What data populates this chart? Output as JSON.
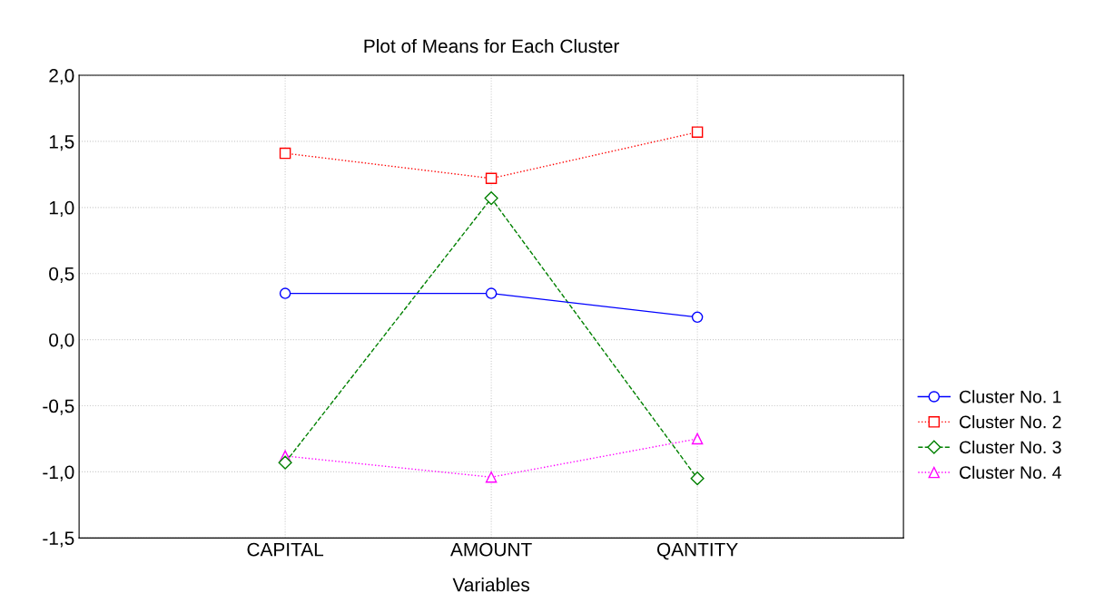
{
  "chart_data": {
    "type": "line",
    "title": "Plot of Means for Each Cluster",
    "xlabel": "Variables",
    "categories": [
      "CAPITAL",
      "AMOUNT",
      "QANTITY"
    ],
    "series": [
      {
        "name": "Cluster No. 1",
        "color": "#0000ff",
        "values": [
          0.35,
          0.35,
          0.17
        ],
        "marker": "circle",
        "line_style": "solid"
      },
      {
        "name": "Cluster No. 2",
        "color": "#ff0000",
        "values": [
          1.41,
          1.22,
          1.57
        ],
        "marker": "square",
        "line_style": "dotted"
      },
      {
        "name": "Cluster No. 3",
        "color": "#008000",
        "values": [
          -0.93,
          1.07,
          -1.05
        ],
        "marker": "diamond",
        "line_style": "dashed"
      },
      {
        "name": "Cluster No. 4",
        "color": "#ff00ff",
        "values": [
          -0.88,
          -1.04,
          -0.75
        ],
        "marker": "triangle",
        "line_style": "dotted"
      }
    ],
    "ylim": [
      -1.5,
      2.0
    ],
    "yticks": [
      {
        "value": -1.5,
        "label": "-1,5"
      },
      {
        "value": -1.0,
        "label": "-1,0"
      },
      {
        "value": -0.5,
        "label": "-0,5"
      },
      {
        "value": 0.0,
        "label": "0,0"
      },
      {
        "value": 0.5,
        "label": "0,5"
      },
      {
        "value": 1.0,
        "label": "1,0"
      },
      {
        "value": 1.5,
        "label": "1,5"
      },
      {
        "value": 2.0,
        "label": "2,0"
      }
    ],
    "grid": true,
    "legend": "right"
  }
}
